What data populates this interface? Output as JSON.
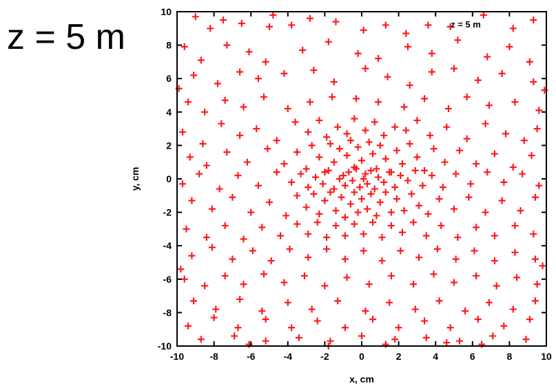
{
  "page": {
    "big_title": "z = 5 m"
  },
  "chart_data": {
    "type": "scatter",
    "title": "z = 5 m",
    "annotation": "z = 5 m",
    "xlabel": "x, cm",
    "ylabel": "y, cm",
    "xlim": [
      -10,
      10
    ],
    "ylim": [
      -10,
      10
    ],
    "xticks": [
      -10,
      -8,
      -6,
      -4,
      -2,
      0,
      2,
      4,
      6,
      8,
      10
    ],
    "yticks": [
      -10,
      -8,
      -6,
      -4,
      -2,
      0,
      2,
      4,
      6,
      8,
      10
    ],
    "grid": false,
    "legend": "none",
    "marker": "plus",
    "marker_color": "#ff1a1a",
    "series": [
      {
        "points": [
          [
            -9.0,
            9.7
          ],
          [
            -8.2,
            9.0
          ],
          [
            -7.5,
            9.5
          ],
          [
            -6.5,
            9.3
          ],
          [
            -5.0,
            9.1
          ],
          [
            -3.8,
            9.2
          ],
          [
            -2.8,
            9.6
          ],
          [
            -1.4,
            9.4
          ],
          [
            0.1,
            8.9
          ],
          [
            1.3,
            9.2
          ],
          [
            2.4,
            8.7
          ],
          [
            3.6,
            9.2
          ],
          [
            4.8,
            9.1
          ],
          [
            6.6,
            9.8
          ],
          [
            8.2,
            9.0
          ],
          [
            9.3,
            9.5
          ],
          [
            -9.6,
            7.9
          ],
          [
            -8.7,
            7.1
          ],
          [
            -7.3,
            8.0
          ],
          [
            -6.1,
            7.6
          ],
          [
            -5.2,
            7.0
          ],
          [
            -3.2,
            7.7
          ],
          [
            -1.8,
            8.2
          ],
          [
            -0.2,
            7.5
          ],
          [
            0.9,
            7.2
          ],
          [
            2.5,
            7.9
          ],
          [
            3.8,
            7.5
          ],
          [
            5.2,
            8.3
          ],
          [
            6.8,
            7.3
          ],
          [
            8.0,
            7.9
          ],
          [
            9.1,
            7.0
          ],
          [
            -9.1,
            6.2
          ],
          [
            -7.8,
            5.7
          ],
          [
            -6.6,
            6.4
          ],
          [
            -5.6,
            6.0
          ],
          [
            -4.2,
            6.3
          ],
          [
            -2.6,
            6.5
          ],
          [
            -1.5,
            5.8
          ],
          [
            0.2,
            6.6
          ],
          [
            1.4,
            6.1
          ],
          [
            2.6,
            5.6
          ],
          [
            3.8,
            6.4
          ],
          [
            5.0,
            6.6
          ],
          [
            6.3,
            5.9
          ],
          [
            7.6,
            6.3
          ],
          [
            9.3,
            5.8
          ],
          [
            -9.4,
            4.6
          ],
          [
            -8.5,
            4.0
          ],
          [
            -7.4,
            4.7
          ],
          [
            -6.4,
            4.3
          ],
          [
            -5.3,
            4.9
          ],
          [
            -4.0,
            4.2
          ],
          [
            -2.8,
            4.6
          ],
          [
            -1.6,
            4.9
          ],
          [
            -0.3,
            4.8
          ],
          [
            0.9,
            4.6
          ],
          [
            2.3,
            4.3
          ],
          [
            3.4,
            4.8
          ],
          [
            4.7,
            4.2
          ],
          [
            5.7,
            4.9
          ],
          [
            6.9,
            4.4
          ],
          [
            8.3,
            4.6
          ],
          [
            9.6,
            4.1
          ],
          [
            -9.7,
            2.8
          ],
          [
            -8.6,
            2.1
          ],
          [
            -7.6,
            3.3
          ],
          [
            -6.6,
            2.6
          ],
          [
            -5.7,
            3.0
          ],
          [
            -4.6,
            2.3
          ],
          [
            -3.6,
            3.4
          ],
          [
            -2.9,
            2.8
          ],
          [
            -2.3,
            3.5
          ],
          [
            -1.9,
            2.5
          ],
          [
            -1.3,
            3.1
          ],
          [
            -0.8,
            2.7
          ],
          [
            -0.4,
            3.6
          ],
          [
            0.2,
            2.9
          ],
          [
            0.7,
            3.4
          ],
          [
            1.2,
            2.6
          ],
          [
            1.8,
            3.1
          ],
          [
            2.4,
            2.9
          ],
          [
            3.0,
            3.5
          ],
          [
            3.7,
            2.6
          ],
          [
            4.6,
            3.1
          ],
          [
            5.7,
            2.4
          ],
          [
            6.7,
            3.3
          ],
          [
            7.8,
            2.7
          ],
          [
            8.8,
            2.3
          ],
          [
            9.5,
            3.0
          ],
          [
            -9.3,
            1.3
          ],
          [
            -8.4,
            0.8
          ],
          [
            -7.3,
            1.6
          ],
          [
            -6.2,
            1.0
          ],
          [
            -5.1,
            1.8
          ],
          [
            -4.2,
            0.9
          ],
          [
            -3.5,
            1.6
          ],
          [
            -3.0,
            0.6
          ],
          [
            -2.7,
            2.0
          ],
          [
            -2.3,
            1.3
          ],
          [
            -2.0,
            0.4
          ],
          [
            -1.7,
            2.1
          ],
          [
            -1.5,
            1.0
          ],
          [
            -1.2,
            1.8
          ],
          [
            -1.0,
            0.2
          ],
          [
            -0.8,
            1.4
          ],
          [
            -0.6,
            2.3
          ],
          [
            -0.4,
            0.7
          ],
          [
            -0.2,
            1.9
          ],
          [
            0.0,
            1.1
          ],
          [
            0.2,
            0.3
          ],
          [
            0.4,
            2.2
          ],
          [
            0.6,
            1.5
          ],
          [
            0.8,
            0.6
          ],
          [
            1.0,
            2.0
          ],
          [
            1.3,
            1.2
          ],
          [
            1.6,
            0.4
          ],
          [
            1.9,
            1.7
          ],
          [
            2.2,
            0.9
          ],
          [
            2.6,
            2.1
          ],
          [
            3.0,
            1.3
          ],
          [
            3.4,
            0.5
          ],
          [
            3.9,
            1.8
          ],
          [
            4.5,
            1.0
          ],
          [
            5.3,
            1.7
          ],
          [
            6.2,
            0.9
          ],
          [
            7.2,
            1.5
          ],
          [
            8.2,
            0.7
          ],
          [
            9.2,
            1.4
          ],
          [
            -9.7,
            -0.3
          ],
          [
            -8.8,
            0.3
          ],
          [
            -7.7,
            -0.6
          ],
          [
            -6.7,
            0.2
          ],
          [
            -5.6,
            -0.4
          ],
          [
            -4.6,
            0.4
          ],
          [
            -3.8,
            -0.2
          ],
          [
            -3.3,
            0.3
          ],
          [
            -2.9,
            -0.5
          ],
          [
            -2.5,
            0.1
          ],
          [
            -2.1,
            -0.3
          ],
          [
            -1.8,
            0.5
          ],
          [
            -1.5,
            -0.6
          ],
          [
            -1.2,
            0.0
          ],
          [
            -0.9,
            -0.4
          ],
          [
            -0.7,
            0.4
          ],
          [
            -0.5,
            -0.1
          ],
          [
            -0.3,
            0.6
          ],
          [
            -0.1,
            -0.5
          ],
          [
            0.1,
            0.0
          ],
          [
            0.3,
            -0.3
          ],
          [
            0.5,
            0.5
          ],
          [
            0.7,
            -0.6
          ],
          [
            0.9,
            0.1
          ],
          [
            1.2,
            -0.2
          ],
          [
            1.5,
            0.4
          ],
          [
            1.8,
            -0.5
          ],
          [
            2.1,
            0.2
          ],
          [
            2.5,
            -0.1
          ],
          [
            2.9,
            0.5
          ],
          [
            3.3,
            -0.4
          ],
          [
            3.8,
            0.2
          ],
          [
            4.4,
            -0.5
          ],
          [
            5.1,
            0.3
          ],
          [
            5.9,
            -0.3
          ],
          [
            6.8,
            0.4
          ],
          [
            7.7,
            -0.2
          ],
          [
            8.7,
            0.3
          ],
          [
            9.6,
            -0.4
          ],
          [
            -9.2,
            -1.3
          ],
          [
            -8.1,
            -1.8
          ],
          [
            -7.0,
            -1.1
          ],
          [
            -6.0,
            -2.0
          ],
          [
            -5.0,
            -1.4
          ],
          [
            -4.1,
            -2.2
          ],
          [
            -3.5,
            -1.0
          ],
          [
            -3.0,
            -1.7
          ],
          [
            -2.6,
            -0.9
          ],
          [
            -2.3,
            -2.1
          ],
          [
            -2.0,
            -1.3
          ],
          [
            -1.7,
            -0.8
          ],
          [
            -1.4,
            -1.9
          ],
          [
            -1.1,
            -1.1
          ],
          [
            -0.9,
            -2.3
          ],
          [
            -0.6,
            -1.5
          ],
          [
            -0.4,
            -0.8
          ],
          [
            -0.2,
            -2.0
          ],
          [
            0.0,
            -1.2
          ],
          [
            0.3,
            -1.8
          ],
          [
            0.5,
            -0.9
          ],
          [
            0.8,
            -2.2
          ],
          [
            1.0,
            -1.4
          ],
          [
            1.3,
            -0.8
          ],
          [
            1.6,
            -2.0
          ],
          [
            1.9,
            -1.2
          ],
          [
            2.3,
            -1.9
          ],
          [
            2.7,
            -0.9
          ],
          [
            3.1,
            -1.6
          ],
          [
            3.6,
            -2.1
          ],
          [
            4.2,
            -1.2
          ],
          [
            5.0,
            -1.8
          ],
          [
            5.8,
            -1.1
          ],
          [
            6.7,
            -2.0
          ],
          [
            7.6,
            -1.3
          ],
          [
            8.6,
            -1.9
          ],
          [
            9.4,
            -1.1
          ],
          [
            -9.5,
            -3.0
          ],
          [
            -8.4,
            -3.5
          ],
          [
            -7.4,
            -2.8
          ],
          [
            -6.4,
            -3.6
          ],
          [
            -5.4,
            -2.9
          ],
          [
            -4.4,
            -3.4
          ],
          [
            -3.5,
            -2.7
          ],
          [
            -2.9,
            -3.3
          ],
          [
            -2.4,
            -2.6
          ],
          [
            -1.9,
            -3.5
          ],
          [
            -1.4,
            -2.8
          ],
          [
            -0.9,
            -3.4
          ],
          [
            -0.4,
            -2.7
          ],
          [
            0.1,
            -3.3
          ],
          [
            0.6,
            -2.6
          ],
          [
            1.1,
            -3.5
          ],
          [
            1.6,
            -2.8
          ],
          [
            2.2,
            -3.2
          ],
          [
            2.8,
            -2.6
          ],
          [
            3.5,
            -3.4
          ],
          [
            4.3,
            -2.8
          ],
          [
            5.2,
            -3.5
          ],
          [
            6.2,
            -2.9
          ],
          [
            7.2,
            -3.4
          ],
          [
            8.3,
            -2.8
          ],
          [
            9.3,
            -3.3
          ],
          [
            -9.2,
            -4.6
          ],
          [
            -8.1,
            -4.1
          ],
          [
            -7.0,
            -4.8
          ],
          [
            -5.9,
            -4.3
          ],
          [
            -4.9,
            -4.9
          ],
          [
            -3.9,
            -4.2
          ],
          [
            -2.9,
            -4.7
          ],
          [
            -1.9,
            -4.2
          ],
          [
            -0.9,
            -4.8
          ],
          [
            0.1,
            -4.3
          ],
          [
            1.1,
            -4.9
          ],
          [
            2.1,
            -4.3
          ],
          [
            3.1,
            -4.7
          ],
          [
            4.1,
            -4.2
          ],
          [
            5.1,
            -4.8
          ],
          [
            6.1,
            -4.3
          ],
          [
            7.2,
            -4.9
          ],
          [
            8.3,
            -4.4
          ],
          [
            9.4,
            -4.8
          ],
          [
            -9.6,
            -6.0
          ],
          [
            -8.5,
            -6.4
          ],
          [
            -7.4,
            -5.8
          ],
          [
            -6.4,
            -6.3
          ],
          [
            -5.3,
            -5.7
          ],
          [
            -4.2,
            -6.2
          ],
          [
            -3.1,
            -5.8
          ],
          [
            -2.0,
            -6.4
          ],
          [
            -0.8,
            -5.9
          ],
          [
            0.4,
            -6.3
          ],
          [
            1.6,
            -5.8
          ],
          [
            2.8,
            -6.3
          ],
          [
            3.9,
            -5.7
          ],
          [
            5.0,
            -6.2
          ],
          [
            6.2,
            -5.8
          ],
          [
            7.3,
            -6.4
          ],
          [
            8.4,
            -5.9
          ],
          [
            9.5,
            -6.3
          ],
          [
            -9.1,
            -7.3
          ],
          [
            -7.9,
            -7.8
          ],
          [
            -6.6,
            -7.2
          ],
          [
            -5.4,
            -7.9
          ],
          [
            -4.0,
            -7.4
          ],
          [
            -2.7,
            -7.8
          ],
          [
            -1.3,
            -7.3
          ],
          [
            0.2,
            -7.9
          ],
          [
            1.5,
            -7.4
          ],
          [
            2.9,
            -7.8
          ],
          [
            4.2,
            -7.3
          ],
          [
            5.6,
            -7.9
          ],
          [
            6.9,
            -7.4
          ],
          [
            8.2,
            -7.8
          ],
          [
            9.4,
            -7.3
          ],
          [
            -9.4,
            -8.8
          ],
          [
            -8.0,
            -8.3
          ],
          [
            -6.7,
            -8.9
          ],
          [
            -5.2,
            -8.4
          ],
          [
            -3.8,
            -8.9
          ],
          [
            -2.4,
            -8.5
          ],
          [
            -0.9,
            -8.9
          ],
          [
            0.6,
            -8.4
          ],
          [
            2.0,
            -8.9
          ],
          [
            3.4,
            -8.5
          ],
          [
            4.8,
            -8.9
          ],
          [
            6.3,
            -8.4
          ],
          [
            7.7,
            -8.8
          ],
          [
            9.1,
            -8.4
          ],
          [
            -8.7,
            -9.6
          ],
          [
            -6.9,
            -9.4
          ],
          [
            -5.2,
            -9.7
          ],
          [
            -3.4,
            -9.5
          ],
          [
            -1.7,
            -9.7
          ],
          [
            0.0,
            -9.4
          ],
          [
            1.8,
            -9.6
          ],
          [
            3.5,
            -9.5
          ],
          [
            5.3,
            -9.7
          ],
          [
            7.1,
            -9.4
          ],
          [
            8.9,
            -9.6
          ],
          [
            -6.1,
            -9.9
          ],
          [
            -1.8,
            -10.0
          ],
          [
            1.3,
            -9.9
          ],
          [
            6.5,
            -9.9
          ],
          [
            -9.9,
            5.4
          ],
          [
            9.8,
            -5.2
          ],
          [
            -9.8,
            -5.4
          ],
          [
            9.9,
            5.3
          ],
          [
            -4.8,
            9.8
          ],
          [
            4.6,
            -9.8
          ]
        ]
      }
    ]
  }
}
